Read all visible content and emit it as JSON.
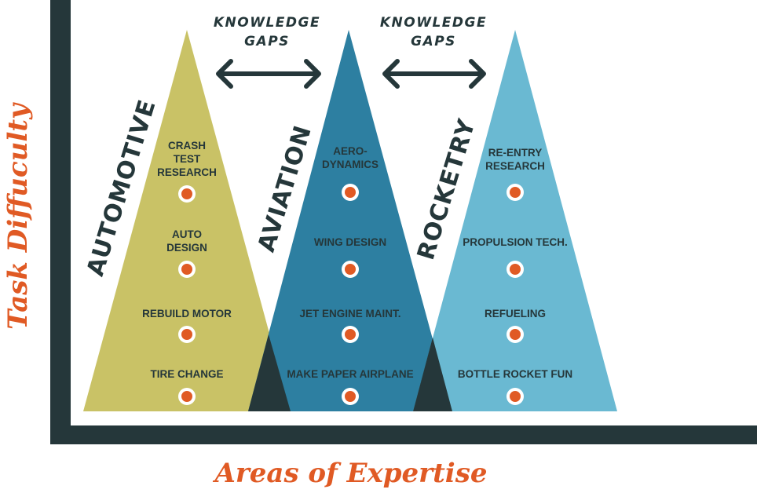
{
  "diagram": {
    "y_axis_label": "Task Diffuculty",
    "x_axis_label": "Areas of Expertise",
    "gaps": [
      {
        "line1": "KNOWLEDGE",
        "line2": "GAPS"
      },
      {
        "line1": "KNOWLEDGE",
        "line2": "GAPS"
      }
    ],
    "colors": {
      "axis": "#25373a",
      "accent_text": "#e05a24",
      "dot": "#e05a24",
      "automotive": "#c9c266",
      "aviation": "#2d7fa1",
      "rocketry": "#6ab9d2",
      "overlap": "#25373a"
    },
    "areas": [
      {
        "name": "AUTOMOTIVE",
        "items": [
          [
            "CRASH",
            "TEST",
            "RESEARCH"
          ],
          [
            "AUTO",
            "DESIGN"
          ],
          [
            "REBUILD MOTOR"
          ],
          [
            "TIRE CHANGE"
          ]
        ]
      },
      {
        "name": "AVIATION",
        "items": [
          [
            "AERO-",
            "DYNAMICS"
          ],
          [
            "WING DESIGN"
          ],
          [
            "JET ENGINE MAINT."
          ],
          [
            "MAKE PAPER AIRPLANE"
          ]
        ]
      },
      {
        "name": "ROCKETRY",
        "items": [
          [
            "RE-ENTRY",
            "RESEARCH"
          ],
          [
            "PROPULSION TECH."
          ],
          [
            "REFUELING"
          ],
          [
            "BOTTLE ROCKET FUN"
          ]
        ]
      }
    ]
  }
}
